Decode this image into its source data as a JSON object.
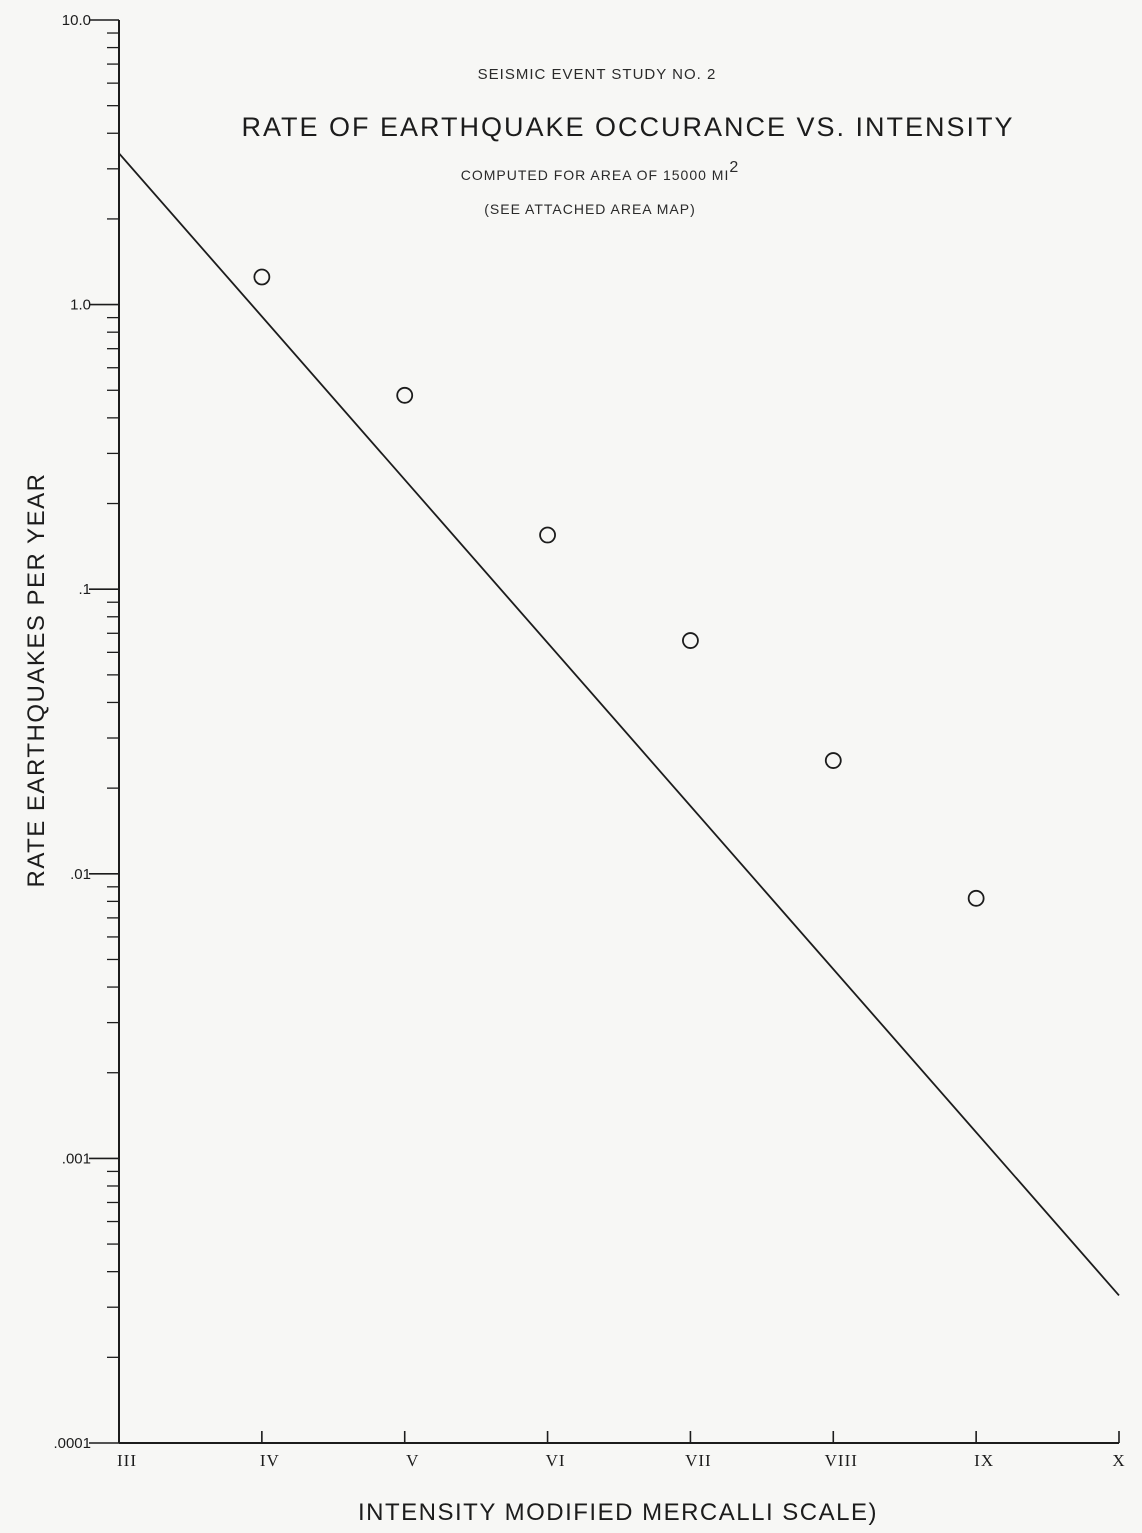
{
  "chart_data": {
    "type": "scatter",
    "supertitle": "SEISMIC EVENT STUDY NO. 2",
    "title": "RATE OF EARTHQUAKE OCCURANCE VS. INTENSITY",
    "subtitle_1": "COMPUTED FOR AREA OF 15000 MI",
    "subtitle_1_sup": "2",
    "subtitle_2": "(SEE ATTACHED AREA MAP)",
    "xlabel": "INTENSITY MODIFIED MERCALLI SCALE)",
    "ylabel": "RATE EARTHQUAKES PER YEAR",
    "yscale": "log",
    "ylim": [
      0.0001,
      10.0
    ],
    "y_ticks": [
      10.0,
      1.0,
      0.1,
      0.01,
      0.001,
      0.0001
    ],
    "y_tick_labels": [
      "10.0",
      "1.0",
      ".1",
      ".01",
      ".001",
      ".0001"
    ],
    "x_categories": [
      "III",
      "IV",
      "V",
      "VI",
      "VII",
      "VIII",
      "IX",
      "X"
    ],
    "xlim": [
      3,
      10
    ],
    "series": [
      {
        "marker": "open-circle",
        "x": [
          4,
          5,
          6,
          7,
          8,
          9
        ],
        "y": [
          1.25,
          0.48,
          0.155,
          0.066,
          0.025,
          0.0082
        ]
      }
    ],
    "fit_line": {
      "x": [
        3,
        10
      ],
      "y": [
        3.4,
        0.00033
      ]
    },
    "grid": false,
    "legend": "none",
    "colors": {
      "ink": "#1c1c1c",
      "background": "#f7f7f5"
    }
  }
}
